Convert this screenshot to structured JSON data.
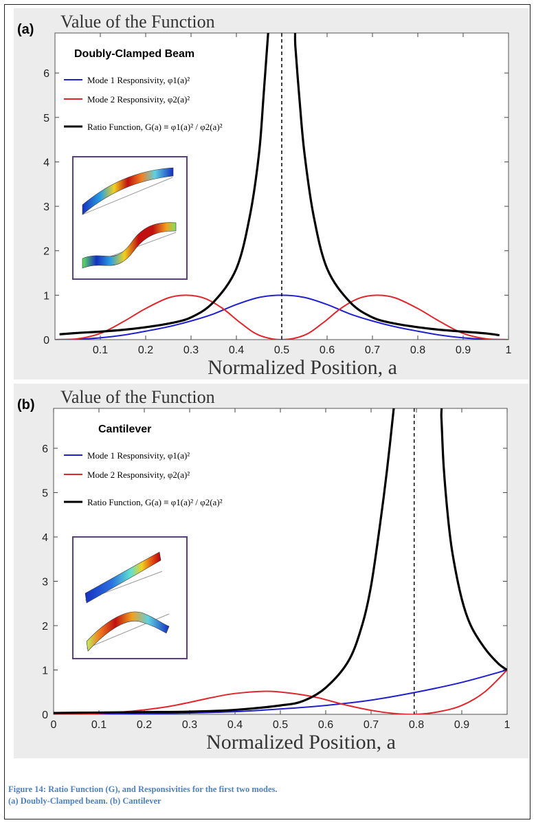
{
  "caption": {
    "line1": "Figure 14: Ratio Function (G), and Responsivities for the first two modes.",
    "line2": "(a) Doubly-Clamped beam. (b) Cantilever"
  },
  "colors": {
    "panel_bg": "#ececec",
    "mode1": "#1f1fd0",
    "mode2": "#e0262b",
    "ratio": "#000000",
    "inset_border": "#5b4080"
  },
  "chart_data": [
    {
      "type": "line",
      "panel_label": "(a)",
      "title": "Value of the Function",
      "subtitle": "Doubly-Clamped Beam",
      "xlabel": "Normalized Position, a",
      "ylabel": "",
      "xlim": [
        0,
        1
      ],
      "ylim": [
        0,
        6.9
      ],
      "xticks": [
        "0.1",
        "0.2",
        "0.3",
        "0.4",
        "0.5",
        "0.6",
        "0.7",
        "0.8",
        "0.9",
        "1"
      ],
      "yticks": [
        "0",
        "1",
        "2",
        "3",
        "4",
        "5",
        "6"
      ],
      "grid": false,
      "legend_position": "top-left",
      "vline": 0.5,
      "series": [
        {
          "name": "Mode 1 Responsivity, φ1(a)²",
          "x": [
            0,
            0.05,
            0.1,
            0.15,
            0.2,
            0.25,
            0.3,
            0.35,
            0.4,
            0.45,
            0.5,
            0.55,
            0.6,
            0.65,
            0.7,
            0.75,
            0.8,
            0.85,
            0.9,
            0.95,
            1
          ],
          "y": [
            0,
            0.01,
            0.04,
            0.1,
            0.19,
            0.29,
            0.42,
            0.58,
            0.79,
            0.95,
            1.0,
            0.95,
            0.79,
            0.58,
            0.42,
            0.29,
            0.19,
            0.1,
            0.04,
            0.01,
            0
          ]
        },
        {
          "name": "Mode 2 Responsivity, φ2(a)²",
          "x": [
            0,
            0.05,
            0.1,
            0.15,
            0.2,
            0.25,
            0.29,
            0.33,
            0.37,
            0.41,
            0.45,
            0.5,
            0.55,
            0.59,
            0.63,
            0.67,
            0.71,
            0.75,
            0.8,
            0.85,
            0.9,
            0.95,
            1
          ],
          "y": [
            0,
            0.02,
            0.14,
            0.4,
            0.7,
            0.94,
            1.0,
            0.93,
            0.7,
            0.37,
            0.1,
            0,
            0.1,
            0.37,
            0.7,
            0.93,
            1.0,
            0.94,
            0.7,
            0.4,
            0.14,
            0.02,
            0
          ]
        },
        {
          "name": "Ratio Function, G(a) ≡ φ1(a)² / φ2(a)²",
          "x": [
            0.01,
            0.05,
            0.1,
            0.15,
            0.2,
            0.25,
            0.3,
            0.35,
            0.4,
            0.43,
            0.45,
            0.46,
            0.47,
            0.475,
            0.525,
            0.53,
            0.54,
            0.55,
            0.57,
            0.6,
            0.65,
            0.7,
            0.75,
            0.8,
            0.85,
            0.9,
            0.95,
            0.98
          ],
          "y": [
            0.12,
            0.15,
            0.18,
            0.22,
            0.28,
            0.36,
            0.5,
            0.85,
            1.6,
            2.8,
            4.2,
            5.5,
            6.9,
            7.5,
            7.5,
            6.6,
            5.3,
            4.2,
            2.8,
            1.6,
            0.85,
            0.5,
            0.36,
            0.28,
            0.22,
            0.18,
            0.14,
            0.1
          ]
        }
      ]
    },
    {
      "type": "line",
      "panel_label": "(b)",
      "title": "Value of the Function",
      "subtitle": "Cantilever",
      "xlabel": "Normalized Position, a",
      "ylabel": "",
      "xlim": [
        0,
        1
      ],
      "ylim": [
        0,
        6.9
      ],
      "xticks": [
        "0",
        "0.1",
        "0.2",
        "0.3",
        "0.4",
        "0.5",
        "0.6",
        "0.7",
        "0.8",
        "0.9",
        "1"
      ],
      "yticks": [
        "0",
        "1",
        "2",
        "3",
        "4",
        "5",
        "6"
      ],
      "grid": false,
      "legend_position": "top-left",
      "vline": 0.795,
      "series": [
        {
          "name": "Mode 1 Responsivity, φ1(a)²",
          "x": [
            0,
            0.1,
            0.2,
            0.3,
            0.4,
            0.5,
            0.6,
            0.7,
            0.8,
            0.9,
            1
          ],
          "y": [
            0,
            0.003,
            0.01,
            0.03,
            0.06,
            0.12,
            0.2,
            0.32,
            0.5,
            0.72,
            1.0
          ]
        },
        {
          "name": "Mode 2 Responsivity, φ2(a)²",
          "x": [
            0,
            0.1,
            0.15,
            0.2,
            0.25,
            0.3,
            0.35,
            0.4,
            0.47,
            0.52,
            0.58,
            0.64,
            0.7,
            0.75,
            0.8,
            0.85,
            0.9,
            0.95,
            1
          ],
          "y": [
            0,
            0.02,
            0.05,
            0.1,
            0.17,
            0.27,
            0.38,
            0.47,
            0.52,
            0.48,
            0.38,
            0.22,
            0.09,
            0.02,
            0,
            0.06,
            0.2,
            0.5,
            1.0
          ]
        },
        {
          "name": "Ratio Function, G(a) ≡ φ1(a)² / φ2(a)²",
          "x": [
            0,
            0.1,
            0.2,
            0.3,
            0.4,
            0.5,
            0.55,
            0.6,
            0.65,
            0.68,
            0.7,
            0.72,
            0.735,
            0.75,
            0.755,
            0.85,
            0.855,
            0.86,
            0.87,
            0.88,
            0.9,
            0.92,
            0.95,
            0.98,
            1
          ],
          "y": [
            0.03,
            0.04,
            0.05,
            0.06,
            0.1,
            0.2,
            0.3,
            0.6,
            1.2,
            2.0,
            2.9,
            4.3,
            5.5,
            6.9,
            7.5,
            7.5,
            6.7,
            5.6,
            4.4,
            3.6,
            2.6,
            2.0,
            1.5,
            1.15,
            1.0
          ]
        }
      ]
    }
  ]
}
